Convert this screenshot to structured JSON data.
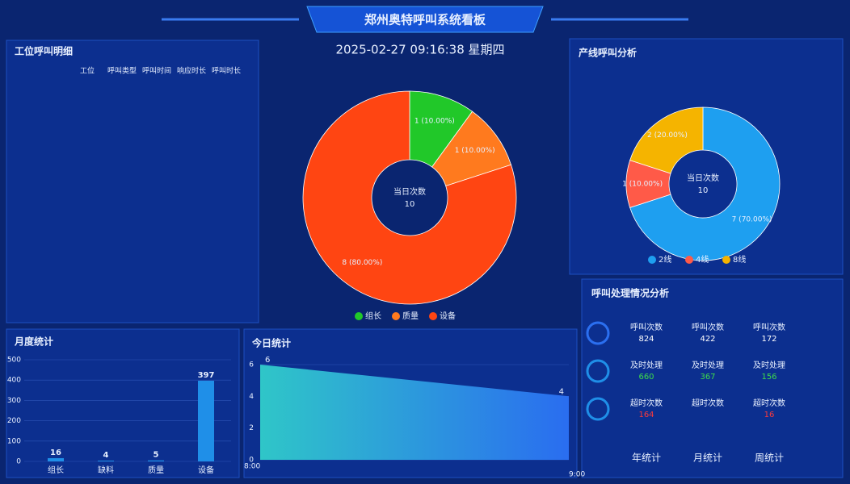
{
  "header": {
    "title": "郑州奥特呼叫系统看板",
    "datetime": "2025-02-27  09:16:38  星期四"
  },
  "call_detail": {
    "title": "工位呼叫明细",
    "columns": [
      "工位",
      "呼叫类型",
      "呼叫时间",
      "响应时长",
      "呼叫时长"
    ]
  },
  "chart_data": [
    {
      "type": "donut",
      "center_label": "当日次数",
      "center_value": 10,
      "categories": [
        "组长",
        "质量",
        "设备"
      ],
      "values": [
        1,
        1,
        8
      ],
      "value_labels": [
        "1 (10.00%)",
        "1 (10.00%)",
        "8 (80.00%)"
      ],
      "colors": [
        "#21c829",
        "#ff7a1e",
        "#ff4512"
      ]
    },
    {
      "type": "donut",
      "title": "产线呼叫分析",
      "center_label": "当日次数",
      "center_value": 10,
      "categories": [
        "2线",
        "4线",
        "8线"
      ],
      "values": [
        7,
        1,
        2
      ],
      "value_labels": [
        "7 (70.00%)",
        "1 (10.00%)",
        "2 (20.00%)"
      ],
      "colors": [
        "#1e9ff0",
        "#ff5a48",
        "#f5b400"
      ]
    },
    {
      "type": "bar",
      "title": "月度统计",
      "categories": [
        "组长",
        "缺料",
        "质量",
        "设备"
      ],
      "values": [
        16,
        4,
        5,
        397
      ],
      "ylim": [
        0,
        500
      ],
      "yticks": [
        0,
        100,
        200,
        300,
        400,
        500
      ],
      "color": "#1f8fe8",
      "grid": true
    },
    {
      "type": "area",
      "title": "今日统计",
      "categories": [
        "8:00",
        "9:00"
      ],
      "values": [
        6,
        4
      ],
      "ylim": [
        0,
        6
      ],
      "yticks": [
        0,
        2,
        4,
        6
      ],
      "colors": [
        "#2fc6c8",
        "#2a6df0"
      ],
      "grid": true
    }
  ],
  "processing": {
    "title": "呼叫处理情况分析",
    "rows": [
      [
        {
          "label": "呼叫次数",
          "value": 824
        },
        {
          "label": "呼叫次数",
          "value": 422
        },
        {
          "label": "呼叫次数",
          "value": 172
        }
      ],
      [
        {
          "label": "及时处理",
          "value": 660
        },
        {
          "label": "及时处理",
          "value": 367
        },
        {
          "label": "及时处理",
          "value": 156
        }
      ],
      [
        {
          "label": "超时次数",
          "value": 164
        },
        {
          "label": "超时次数"
        },
        {
          "label": "超时次数",
          "value": 16
        }
      ]
    ],
    "value_colors": [
      "#ffffff",
      "#3ddc4a",
      "#ff3a3a"
    ]
  },
  "tabs": [
    "年统计",
    "月统计",
    "周统计"
  ]
}
